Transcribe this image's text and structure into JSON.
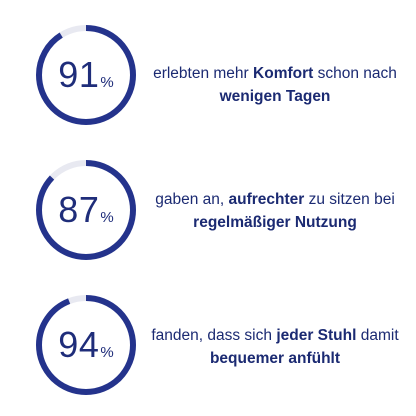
{
  "accent": "#24338c",
  "track": "#e8e9f1",
  "stats": [
    {
      "value": 91,
      "number": "91",
      "unit": "%",
      "text_1": "erlebten mehr ",
      "bold_1": "Komfort",
      "text_2": " schon nach ",
      "bold_2": "wenigen Tagen",
      "text_3": ""
    },
    {
      "value": 87,
      "number": "87",
      "unit": "%",
      "text_1": "gaben an, ",
      "bold_1": "aufrechter",
      "text_2": " zu sitzen bei ",
      "bold_2": "regelmäßiger Nutzung",
      "text_3": ""
    },
    {
      "value": 94,
      "number": "94",
      "unit": "%",
      "text_1": "fanden, dass sich ",
      "bold_1": "jeder Stuhl",
      "text_2": " damit ",
      "bold_2": "bequemer anfühlt",
      "text_3": ""
    }
  ]
}
